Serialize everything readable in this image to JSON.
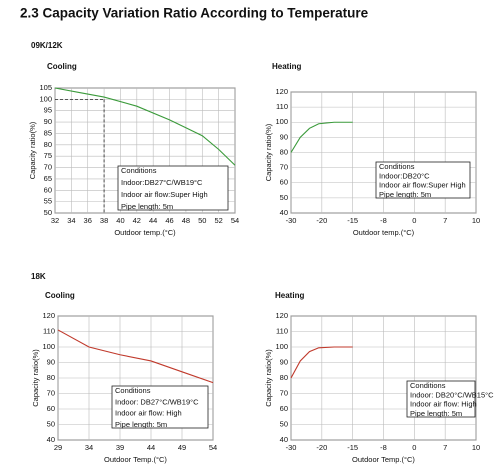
{
  "title": "2.3 Capacity Variation Ratio According to Temperature",
  "groups": [
    "09K/12K",
    "18K"
  ],
  "chart_data": [
    {
      "type": "line",
      "title": "Cooling",
      "x_label": "Outdoor temp.(°C)",
      "y_label": "Capacity ratio(%)",
      "xlim": [
        32,
        54
      ],
      "xticks": [
        32,
        34,
        36,
        38,
        40,
        42,
        44,
        46,
        48,
        50,
        52,
        54
      ],
      "ylim": [
        50,
        105
      ],
      "yticks": [
        50,
        55,
        60,
        65,
        70,
        75,
        80,
        85,
        90,
        95,
        100,
        105
      ],
      "grid": true,
      "reference_point": [
        38,
        100
      ],
      "series": [
        {
          "color": "#3a9a3a",
          "x": [
            32,
            35,
            38,
            42,
            46,
            50,
            52,
            54
          ],
          "values": [
            105,
            103,
            101,
            97,
            91,
            84,
            78,
            71
          ]
        }
      ],
      "annotation": [
        "Conditions",
        "Indoor:DB27°C/WB19°C",
        "Indoor air flow:Super High",
        "Pipe length: 5m"
      ]
    },
    {
      "type": "line",
      "title": "Heating",
      "x_label": "Outdoor temp.(°C)",
      "y_label": "Capacity ratio(%)",
      "xlim": [
        -30,
        10
      ],
      "xticks": [
        -30,
        -20,
        -15,
        -8,
        0,
        7,
        10
      ],
      "ylim": [
        40,
        120
      ],
      "yticks": [
        40,
        50,
        60,
        70,
        80,
        90,
        100,
        110,
        120
      ],
      "grid": true,
      "series": [
        {
          "color": "#3a9a3a",
          "x": [
            -30,
            -27,
            -24,
            -21,
            -18,
            -15
          ],
          "values": [
            80,
            90,
            96,
            99,
            100,
            100
          ]
        }
      ],
      "annotation": [
        "Conditions",
        "Indoor:DB20°C",
        "Indoor air flow:Super High",
        "Pipe length: 5m"
      ]
    },
    {
      "type": "line",
      "title": "Cooling",
      "x_label": "Outdoor Temp.(°C)",
      "y_label": "Capacity ratio(%)",
      "xlim": [
        29,
        54
      ],
      "xticks": [
        29,
        34,
        39,
        44,
        49,
        54
      ],
      "ylim": [
        40,
        120
      ],
      "yticks": [
        40,
        50,
        60,
        70,
        80,
        90,
        100,
        110,
        120
      ],
      "grid": true,
      "series": [
        {
          "color": "#c0392b",
          "x": [
            29,
            34,
            39,
            44,
            49,
            54
          ],
          "values": [
            111,
            100,
            95,
            91,
            84,
            77
          ]
        }
      ],
      "annotation": [
        "Conditions",
        "Indoor: DB27°C/WB19°C",
        "Indoor air flow: High",
        "Pipe length: 5m"
      ]
    },
    {
      "type": "line",
      "title": "Heating",
      "x_label": "Outdoor Temp.(°C)",
      "y_label": "Capacity ratio(%)",
      "xlim": [
        -30,
        10
      ],
      "xticks": [
        -30,
        -20,
        -15,
        -8,
        0,
        7,
        10
      ],
      "ylim": [
        40,
        120
      ],
      "yticks": [
        40,
        50,
        60,
        70,
        80,
        90,
        100,
        110,
        120
      ],
      "grid": true,
      "series": [
        {
          "color": "#c0392b",
          "x": [
            -30,
            -27,
            -24,
            -21,
            -18,
            -15
          ],
          "values": [
            80,
            91,
            97,
            99.5,
            100,
            100
          ]
        }
      ],
      "annotation": [
        "Conditions",
        "Indoor: DB20°C/WB15°C",
        "Indoor air flow: High",
        "Pipe length: 5m"
      ]
    }
  ]
}
